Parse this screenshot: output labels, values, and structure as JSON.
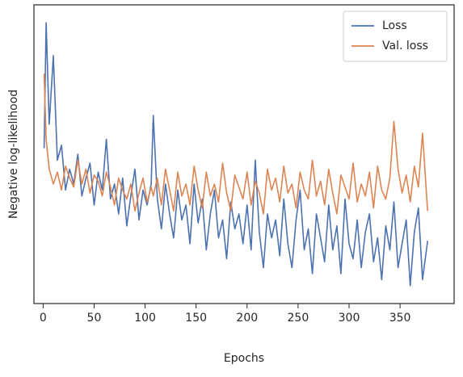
{
  "chart_data": {
    "type": "line",
    "xlabel": "Epochs",
    "ylabel": "Negative log-likelihood",
    "x": [
      1,
      3,
      6,
      10,
      14,
      18,
      22,
      26,
      30,
      34,
      38,
      42,
      46,
      50,
      54,
      58,
      62,
      66,
      70,
      74,
      78,
      82,
      86,
      90,
      94,
      98,
      102,
      106,
      108,
      112,
      116,
      120,
      124,
      128,
      132,
      136,
      140,
      144,
      148,
      152,
      156,
      160,
      164,
      168,
      172,
      176,
      180,
      184,
      188,
      192,
      196,
      200,
      204,
      208,
      212,
      216,
      220,
      224,
      228,
      232,
      236,
      240,
      244,
      248,
      252,
      256,
      260,
      264,
      268,
      272,
      276,
      280,
      284,
      288,
      292,
      296,
      300,
      304,
      308,
      312,
      316,
      320,
      324,
      328,
      332,
      336,
      340,
      344,
      348,
      352,
      356,
      360,
      364,
      368,
      372,
      377
    ],
    "series": [
      {
        "name": "Loss",
        "color": "#4c72b0",
        "values": [
          52,
          94,
          60,
          83,
          48,
          53,
          38,
          45,
          40,
          50,
          36,
          42,
          47,
          33,
          44,
          38,
          55,
          35,
          40,
          30,
          42,
          26,
          36,
          45,
          28,
          38,
          33,
          40,
          63,
          35,
          25,
          40,
          30,
          22,
          38,
          28,
          33,
          20,
          40,
          27,
          35,
          18,
          30,
          38,
          22,
          28,
          15,
          34,
          25,
          30,
          20,
          33,
          18,
          48,
          24,
          12,
          30,
          22,
          28,
          16,
          35,
          20,
          12,
          28,
          38,
          18,
          25,
          10,
          30,
          22,
          14,
          33,
          18,
          26,
          10,
          35,
          20,
          15,
          28,
          12,
          24,
          30,
          14,
          22,
          8,
          26,
          18,
          34,
          12,
          20,
          28,
          6,
          24,
          32,
          8,
          21
        ]
      },
      {
        "name": "Val. loss",
        "color": "#dd8452",
        "values": [
          77,
          55,
          45,
          40,
          44,
          38,
          46,
          42,
          39,
          48,
          40,
          45,
          37,
          43,
          41,
          36,
          44,
          39,
          33,
          42,
          38,
          35,
          40,
          31,
          37,
          42,
          34,
          39,
          36,
          42,
          33,
          45,
          38,
          31,
          44,
          36,
          40,
          33,
          46,
          38,
          32,
          44,
          36,
          40,
          34,
          47,
          37,
          31,
          43,
          39,
          35,
          44,
          33,
          41,
          37,
          30,
          45,
          38,
          42,
          34,
          46,
          37,
          40,
          32,
          44,
          38,
          35,
          48,
          36,
          41,
          33,
          45,
          37,
          30,
          43,
          39,
          35,
          47,
          34,
          40,
          36,
          44,
          32,
          46,
          38,
          35,
          42,
          61,
          45,
          37,
          43,
          34,
          46,
          39,
          57,
          31
        ]
      }
    ],
    "xlim": [
      -9,
      403
    ],
    "xticks": [
      0,
      50,
      100,
      150,
      200,
      250,
      300,
      350
    ],
    "ylim": [
      0,
      100
    ],
    "legend": "upper right"
  }
}
